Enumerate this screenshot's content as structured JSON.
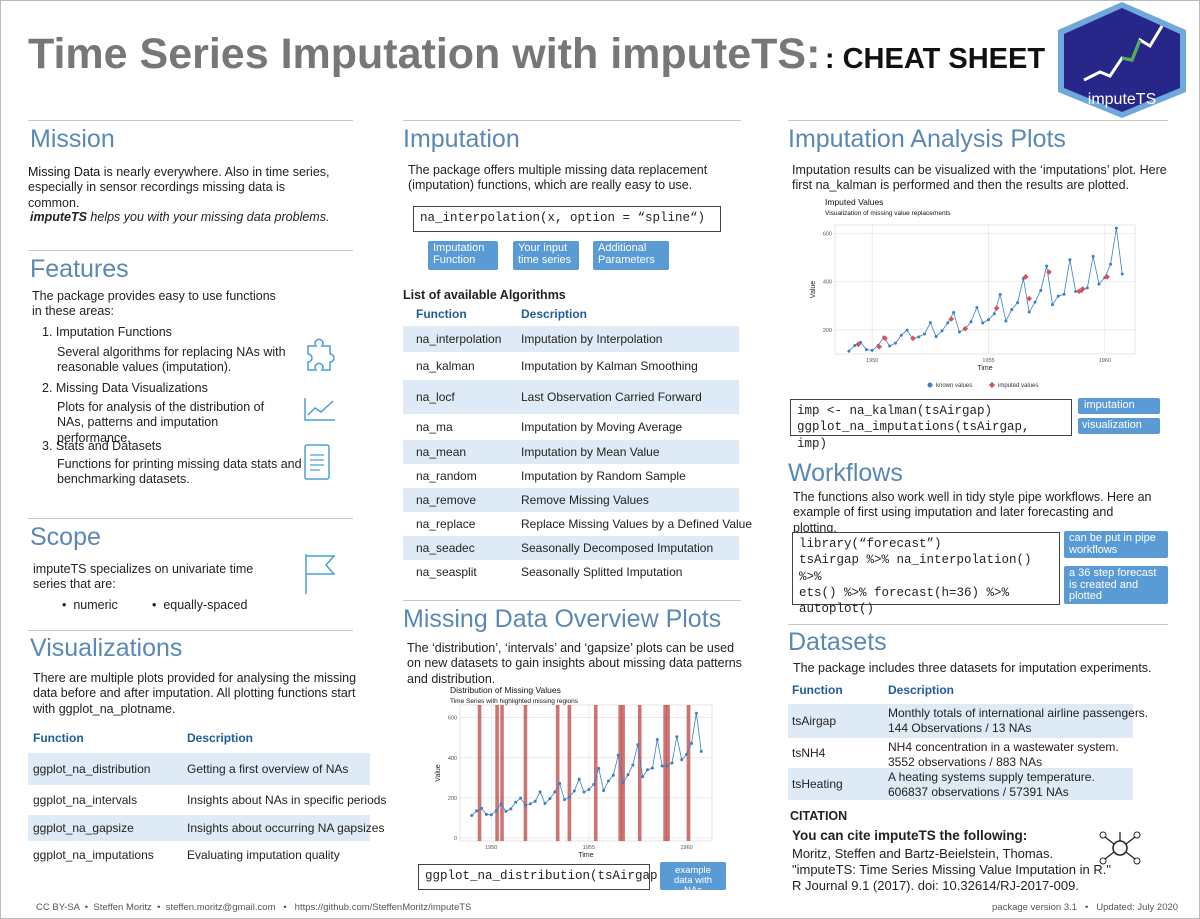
{
  "header": {
    "title": "Time Series Imputation with imputeTS:",
    "subtitle": ": CHEAT SHEET",
    "logo": "imputeTS"
  },
  "mission": {
    "heading": "Mission",
    "bold": "Missing Data",
    "text": " is nearly everywhere. Also in time series, especially in sensor recordings missing data is common.",
    "tagline_em": "imputeTS",
    "tagline": " helps you with your missing data problems."
  },
  "features": {
    "heading": "Features",
    "intro": "The package provides easy to use functions in these areas:",
    "items": [
      {
        "title": "1. Imputation Functions",
        "text": "Several algorithms for replacing NAs with reasonable values (imputation)."
      },
      {
        "title": "2. Missing Data Visualizations",
        "text": "Plots for analysis of the distribution of NAs, patterns and imputation performance."
      },
      {
        "title": "3. Stats and Datasets",
        "text": "Functions for printing missing data stats and benchmarking datasets."
      }
    ]
  },
  "scope": {
    "heading": "Scope",
    "text": "imputeTS specializes on univariate time series that are:",
    "bullets": [
      "numeric",
      "equally-spaced"
    ]
  },
  "visualizations": {
    "heading": "Visualizations",
    "text": "There are multiple plots provided for analysing the missing data before and after imputation.  All plotting functions start with ggplot_na_plotname.",
    "table": {
      "headers": [
        "Function",
        "Description"
      ],
      "rows": [
        [
          "ggplot_na_distribution",
          "Getting a first overview of NAs"
        ],
        [
          "ggplot_na_intervals",
          "Insights about NAs in specific periods"
        ],
        [
          "ggplot_na_gapsize",
          "Insights about occurring NA gapsizes"
        ],
        [
          "ggplot_na_imputations",
          "Evaluating imputation quality"
        ]
      ]
    }
  },
  "imputation": {
    "heading": "Imputation",
    "text": "The package offers multiple missing data replacement (imputation) functions, which are really easy to use.",
    "code": "na_interpolation(x, option = “spline“)",
    "callouts": [
      "Imputation Function",
      "Your input time series",
      "Additional Parameters"
    ],
    "list_title": "List of available Algorithms",
    "table": {
      "headers": [
        "Function",
        "Description"
      ],
      "rows": [
        [
          "na_interpolation",
          "Imputation by Interpolation"
        ],
        [
          "na_kalman",
          "Imputation by Kalman Smoothing"
        ],
        [
          "na_locf",
          "Last Observation Carried Forward"
        ],
        [
          "na_ma",
          "Imputation by Moving Average"
        ],
        [
          "na_mean",
          "Imputation by Mean Value"
        ],
        [
          "na_random",
          "Imputation by Random Sample"
        ],
        [
          "na_remove",
          "Remove Missing Values"
        ],
        [
          "na_replace",
          "Replace Missing Values by a Defined Value"
        ],
        [
          "na_seadec",
          "Seasonally Decomposed Imputation"
        ],
        [
          "na_seasplit",
          "Seasonally Splitted Imputation"
        ]
      ]
    }
  },
  "missing_plots": {
    "heading": "Missing Data Overview Plots",
    "text": "The ‘distribution’, ‘intervals’ and ‘gapsize’ plots can be used on new datasets to gain insights about missing data  patterns and distribution.",
    "plot": {
      "title": "Distribution of Missing Values",
      "subtitle": "Time Series with highlighted missing regions",
      "xlabel": "Time",
      "ylabel": "Value",
      "xlim": [
        1948.4,
        1961.3
      ],
      "ylim": [
        -15,
        663
      ],
      "xticks": [
        1950,
        1955,
        1960
      ],
      "yticks": [
        0,
        200,
        400,
        600
      ],
      "color": "#3b7fc4",
      "missing_color": "#c0504d",
      "x": [
        1949,
        1949.25,
        1949.5,
        1949.75,
        1950,
        1950.25,
        1950.5,
        1950.75,
        1951,
        1951.25,
        1951.5,
        1951.75,
        1952,
        1952.25,
        1952.5,
        1952.75,
        1953,
        1953.25,
        1953.5,
        1953.75,
        1954,
        1954.25,
        1954.5,
        1954.75,
        1955,
        1955.25,
        1955.5,
        1955.75,
        1956,
        1956.25,
        1956.5,
        1956.75,
        1957,
        1957.25,
        1957.5,
        1957.75,
        1958,
        1958.25,
        1958.5,
        1958.75,
        1959,
        1959.25,
        1959.5,
        1959.75,
        1960,
        1960.25,
        1960.5,
        1960.75
      ],
      "values": [
        112,
        135,
        148,
        118,
        115,
        135,
        170,
        133,
        145,
        178,
        199,
        162,
        171,
        183,
        230,
        172,
        196,
        229,
        272,
        191,
        204,
        234,
        293,
        229,
        242,
        267,
        347,
        237,
        284,
        313,
        413,
        274,
        315,
        364,
        465,
        305,
        340,
        348,
        491,
        359,
        360,
        374,
        505,
        390,
        417,
        472,
        622,
        432
      ],
      "missing_x": [
        1949.4,
        1950.3,
        1950.55,
        1951.75,
        1953.4,
        1954.0,
        1955.35,
        1956.6,
        1956.75,
        1957.6,
        1958.9,
        1959.05,
        1960.1
      ]
    },
    "code": "ggplot_na_distribution(tsAirgap)",
    "callout": "example data with NAs"
  },
  "analysis_plots": {
    "heading": "Imputation Analysis Plots",
    "text": "Imputation results can be visualized with the ‘imputations’ plot. Here first na_kalman is performed and then the results are plotted.",
    "plot": {
      "title": "Imputed Values",
      "subtitle": "Visualization of missing value replacements",
      "xlabel": "Time",
      "ylabel": "Value",
      "xlim": [
        1948.4,
        1961.3
      ],
      "ylim": [
        100,
        635
      ],
      "xticks": [
        1950,
        1955,
        1960
      ],
      "yticks": [
        200,
        400,
        600
      ],
      "legend": [
        "known values",
        "imputed values"
      ],
      "color": "#3b7fc4",
      "imputed_color": "#d9534f",
      "x": [
        1949,
        1949.25,
        1949.5,
        1949.75,
        1950,
        1950.25,
        1950.5,
        1950.75,
        1951,
        1951.25,
        1951.5,
        1951.75,
        1952,
        1952.25,
        1952.5,
        1952.75,
        1953,
        1953.25,
        1953.5,
        1953.75,
        1954,
        1954.25,
        1954.5,
        1954.75,
        1955,
        1955.25,
        1955.5,
        1955.75,
        1956,
        1956.25,
        1956.5,
        1956.75,
        1957,
        1957.25,
        1957.5,
        1957.75,
        1958,
        1958.25,
        1958.5,
        1958.75,
        1959,
        1959.25,
        1959.5,
        1959.75,
        1960,
        1960.25,
        1960.5,
        1960.75
      ],
      "values": [
        112,
        135,
        148,
        118,
        115,
        135,
        170,
        133,
        145,
        178,
        199,
        162,
        171,
        183,
        230,
        172,
        196,
        229,
        272,
        191,
        204,
        234,
        293,
        229,
        242,
        267,
        347,
        237,
        284,
        313,
        413,
        274,
        315,
        364,
        465,
        305,
        340,
        348,
        491,
        359,
        360,
        374,
        505,
        390,
        417,
        472,
        622,
        432
      ],
      "imputed_x": [
        1949.4,
        1950.3,
        1950.55,
        1951.75,
        1953.4,
        1954.0,
        1955.35,
        1956.6,
        1956.75,
        1957.6,
        1958.9,
        1959.05,
        1960.1
      ],
      "imputed_values": [
        140,
        130,
        165,
        165,
        245,
        205,
        290,
        420,
        330,
        440,
        360,
        370,
        420
      ]
    },
    "code": [
      "imp <- na_kalman(tsAirgap)",
      "ggplot_na_imputations(tsAirgap, imp)"
    ],
    "callouts": [
      "imputation",
      "visualization"
    ]
  },
  "workflows": {
    "heading": "Workflows",
    "text": "The functions also work well in tidy style pipe workflows. Here an example of first using imputation and later forecasting and plotting.",
    "code": [
      "library(“forecast”)",
      "tsAirgap %>% na_interpolation() %>%",
      "ets() %>% forecast(h=36) %>%",
      "autoplot()"
    ],
    "callouts": [
      "can be put in pipe workflows",
      "a 36 step forecast is created and plotted"
    ]
  },
  "datasets": {
    "heading": "Datasets",
    "text": "The package includes three datasets for imputation experiments.",
    "table": {
      "headers": [
        "Function",
        "Description"
      ],
      "rows": [
        [
          "tsAirgap",
          "Monthly totals of international airline passengers.",
          "144 Observations / 13 NAs"
        ],
        [
          "tsNH4",
          "NH4 concentration in a wastewater system.",
          "3552 observations / 883 NAs"
        ],
        [
          "tsHeating",
          "A heating systems supply temperature.",
          "606837 observations / 57391 NAs"
        ]
      ]
    }
  },
  "citation": {
    "heading": "CITATION",
    "lead": "You can cite imputeTS the following:",
    "lines": [
      "Moritz, Steffen and Bartz-Beielstein, Thomas.",
      "\"imputeTS: Time Series Missing Value Imputation in R.\"",
      "R Journal 9.1 (2017). doi: 10.32614/RJ-2017-009."
    ]
  },
  "footer": {
    "left": [
      "CC BY-SA",
      "Steffen Moritz",
      "steffen.moritz@gmail.com",
      "https://github.com/SteffenMoritz/imputeTS"
    ],
    "right": [
      "package version 3.1",
      "Updated: July 2020"
    ]
  }
}
